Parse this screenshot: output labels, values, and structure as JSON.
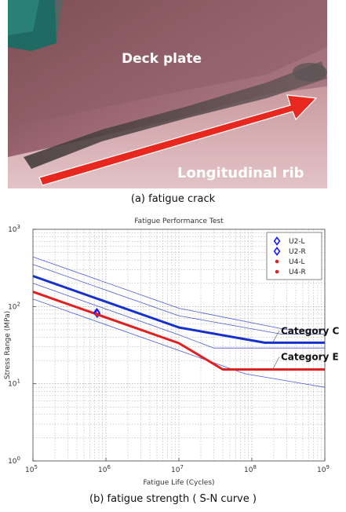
{
  "photo": {
    "label_top": "Deck plate",
    "label_bottom": "Longitudinal rib",
    "arrow_color": "#e8281e"
  },
  "captions": {
    "a": "(a) fatigue crack",
    "b": "(b) fatigue strength ( S-N curve )"
  },
  "chart_data": {
    "type": "line",
    "title": "Fatigue Performance Test",
    "xlabel": "Fatigue Life (Cycles)",
    "ylabel": "Stress Range (MPa)",
    "xscale": "log",
    "yscale": "log",
    "xlim": [
      100000,
      1000000000
    ],
    "ylim": [
      1,
      1000
    ],
    "x_ticks": [
      {
        "value": 100000,
        "base": "10",
        "exp": "5"
      },
      {
        "value": 1000000,
        "base": "10",
        "exp": "6"
      },
      {
        "value": 10000000,
        "base": "10",
        "exp": "7"
      },
      {
        "value": 100000000,
        "base": "10",
        "exp": "8"
      },
      {
        "value": 1000000000,
        "base": "10",
        "exp": "9"
      }
    ],
    "y_ticks": [
      {
        "value": 1,
        "base": "10",
        "exp": "0"
      },
      {
        "value": 10,
        "base": "10",
        "exp": "1"
      },
      {
        "value": 100,
        "base": "10",
        "exp": "2"
      },
      {
        "value": 1000,
        "base": "10",
        "exp": "3"
      }
    ],
    "grid": true,
    "legend_position": "top-right",
    "legend": [
      {
        "label": "U2-L",
        "marker": "diamond-open",
        "color": "#1a1aff"
      },
      {
        "label": "U2-R",
        "marker": "diamond-open",
        "color": "#1a1aff"
      },
      {
        "label": "U4-L",
        "marker": "dot",
        "color": "#e51e1e"
      },
      {
        "label": "U4-R",
        "marker": "dot",
        "color": "#e51e1e"
      }
    ],
    "series": [
      {
        "name": "Category C",
        "color": "#1530cc",
        "width": 3,
        "points": [
          [
            100000,
            248
          ],
          [
            10000000,
            53.5
          ],
          [
            150000000,
            34
          ],
          [
            1000000000,
            34
          ]
        ]
      },
      {
        "name": "Category E",
        "color": "#e11f1f",
        "width": 3,
        "points": [
          [
            100000,
            155
          ],
          [
            10000000,
            33.5
          ],
          [
            40000000,
            15.3
          ],
          [
            1000000000,
            15.3
          ]
        ]
      },
      {
        "color": "#4a5ad8",
        "width": 0.8,
        "points": [
          [
            100000,
            440
          ],
          [
            10000000,
            95
          ],
          [
            300000000,
            50
          ],
          [
            1000000000,
            50
          ]
        ]
      },
      {
        "color": "#4a5ad8",
        "width": 0.8,
        "points": [
          [
            100000,
            350
          ],
          [
            10000000,
            76
          ],
          [
            250000000,
            44
          ],
          [
            1000000000,
            44
          ]
        ]
      },
      {
        "color": "#4a5ad8",
        "width": 0.8,
        "points": [
          [
            100000,
            200
          ],
          [
            10000000,
            43
          ],
          [
            30000000,
            29
          ],
          [
            1000000000,
            29
          ]
        ]
      },
      {
        "color": "#4a5ad8",
        "width": 0.8,
        "points": [
          [
            100000,
            125
          ],
          [
            10000000,
            27
          ],
          [
            80000000,
            13.5
          ],
          [
            1000000000,
            9
          ]
        ]
      }
    ],
    "markers": [
      {
        "name": "U2-L",
        "x": 750000,
        "y": 84,
        "shape": "diamond-open",
        "color": "#1a1aff"
      },
      {
        "name": "U2-R",
        "x": 760000,
        "y": 81,
        "shape": "diamond-open",
        "color": "#1a1aff"
      },
      {
        "name": "U4-L",
        "x": 740000,
        "y": 80,
        "shape": "dot",
        "color": "#e51e1e"
      },
      {
        "name": "U4-R",
        "x": 770000,
        "y": 78,
        "shape": "dot",
        "color": "#e51e1e"
      }
    ],
    "annotations": [
      {
        "text": "Category C",
        "near_series": "Category C"
      },
      {
        "text": "Category E",
        "near_series": "Category E"
      }
    ]
  }
}
